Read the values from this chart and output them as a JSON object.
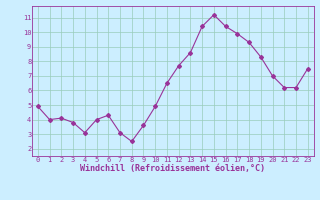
{
  "x": [
    0,
    1,
    2,
    3,
    4,
    5,
    6,
    7,
    8,
    9,
    10,
    11,
    12,
    13,
    14,
    15,
    16,
    17,
    18,
    19,
    20,
    21,
    22,
    23
  ],
  "y": [
    4.9,
    4.0,
    4.1,
    3.8,
    3.1,
    4.0,
    4.3,
    3.1,
    2.5,
    3.6,
    4.9,
    6.5,
    7.7,
    8.6,
    10.4,
    11.2,
    10.4,
    9.9,
    9.3,
    8.3,
    7.0,
    6.2,
    6.2,
    7.5
  ],
  "line_color": "#993399",
  "marker": "D",
  "marker_size": 2.0,
  "bg_color": "#cceeff",
  "grid_color": "#99ccbb",
  "xlabel": "Windchill (Refroidissement éolien,°C)",
  "xlabel_color": "#993399",
  "tick_color": "#993399",
  "xlim": [
    -0.5,
    23.5
  ],
  "ylim": [
    1.5,
    11.8
  ],
  "yticks": [
    2,
    3,
    4,
    5,
    6,
    7,
    8,
    9,
    10,
    11
  ],
  "xticks": [
    0,
    1,
    2,
    3,
    4,
    5,
    6,
    7,
    8,
    9,
    10,
    11,
    12,
    13,
    14,
    15,
    16,
    17,
    18,
    19,
    20,
    21,
    22,
    23
  ],
  "tick_fontsize": 5.0,
  "xlabel_fontsize": 6.0
}
